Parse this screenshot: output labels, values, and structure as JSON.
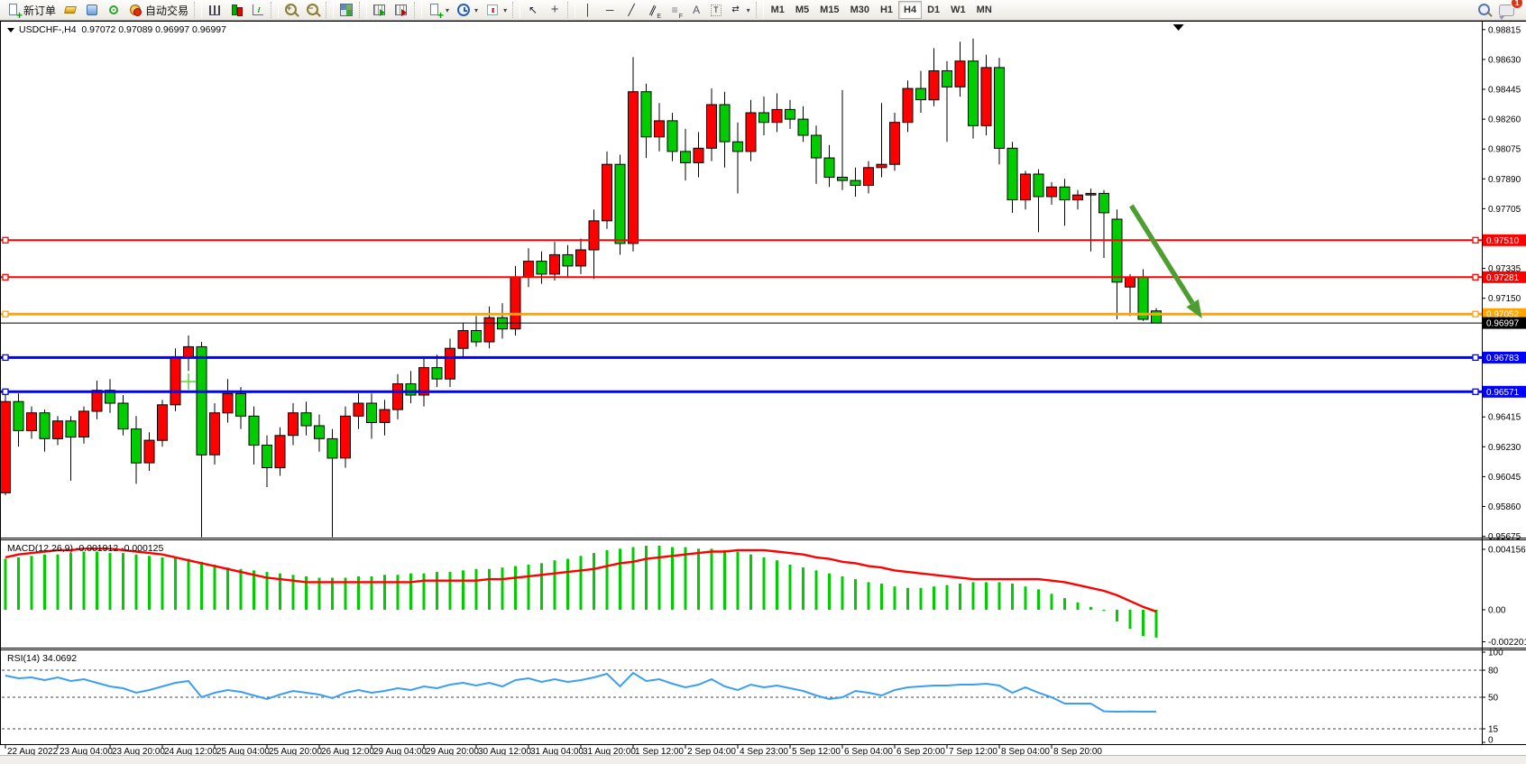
{
  "toolbar": {
    "new_order_label": "新订单",
    "auto_trading_label": "自动交易",
    "timeframes": [
      "M1",
      "M5",
      "M15",
      "M30",
      "H1",
      "H4",
      "D1",
      "W1",
      "MN"
    ],
    "active_timeframe": "H4",
    "notification_count": "1"
  },
  "icons": {
    "caret": "▾",
    "cursor": "↖",
    "crosshair": "+",
    "vline": "│",
    "hline": "─",
    "trendline": "╱",
    "channel": "∥",
    "fibo": "≡",
    "text_tool": "A",
    "label_tool": "T",
    "arrows_tool": "⇄",
    "zoom_in": "+",
    "zoom_out": "−",
    "search": "🔍"
  },
  "chart": {
    "title_text": "USDCHF-,H4  0.97072 0.97089 0.96997 0.96997",
    "macd_label": "MACD(12,26,9) -0.001912 -0.000125",
    "rsi_label": "RSI(14) 34.0692"
  },
  "chart_data": [
    {
      "type": "candlestick",
      "symbol": "USDCHF-",
      "timeframe": "H4",
      "ohlc_last": {
        "open": 0.97072,
        "high": 0.97089,
        "low": 0.96997,
        "close": 0.96997
      },
      "bull_color": "#ff0000",
      "bear_color": "#00cc00",
      "y_axis_labels": [
        0.98815,
        0.9863,
        0.98445,
        0.9826,
        0.98075,
        0.9789,
        0.97705,
        0.97335,
        0.9715,
        0.96415,
        0.9623,
        0.96045,
        0.9586,
        0.95675
      ],
      "axis_badges": [
        {
          "value": 0.9751,
          "color": "#ff0000"
        },
        {
          "value": 0.97281,
          "color": "#ff0000"
        },
        {
          "value": 0.97052,
          "color": "#ffa500"
        },
        {
          "value": 0.96997,
          "color": "#000000"
        },
        {
          "value": 0.96783,
          "color": "#0000ff"
        },
        {
          "value": 0.96571,
          "color": "#0000ff"
        }
      ],
      "level_lines": [
        {
          "price": 0.9751,
          "color": "#ff0000",
          "width": 2
        },
        {
          "price": 0.97281,
          "color": "#ff0000",
          "width": 2
        },
        {
          "price": 0.97052,
          "color": "#ffa500",
          "width": 3
        },
        {
          "price": 0.96783,
          "color": "#0000ff",
          "width": 3
        },
        {
          "price": 0.96571,
          "color": "#0000ff",
          "width": 3
        }
      ],
      "current_price_line": {
        "price": 0.96997,
        "color": "#000000"
      },
      "time_labels": [
        "22 Aug 2022",
        "23 Aug 04:00",
        "23 Aug 20:00",
        "24 Aug 12:00",
        "25 Aug 04:00",
        "25 Aug 20:00",
        "26 Aug 12:00",
        "29 Aug 04:00",
        "29 Aug 20:00",
        "30 Aug 12:00",
        "31 Aug 04:00",
        "31 Aug 20:00",
        "1 Sep 12:00",
        "2 Sep 04:00",
        "4 Sep 23:00",
        "5 Sep 12:00",
        "6 Sep 04:00",
        "6 Sep 20:00",
        "7 Sep 12:00",
        "8 Sep 04:00",
        "8 Sep 20:00"
      ],
      "bars_per_label": 4,
      "ohlc": [
        [
          0.95945,
          0.9656,
          0.9593,
          0.9651
        ],
        [
          0.9651,
          0.9656,
          0.9623,
          0.9633
        ],
        [
          0.9633,
          0.9648,
          0.9628,
          0.9644
        ],
        [
          0.9644,
          0.9646,
          0.962,
          0.9628
        ],
        [
          0.9628,
          0.9642,
          0.9624,
          0.9639
        ],
        [
          0.9639,
          0.9642,
          0.9602,
          0.9629
        ],
        [
          0.9629,
          0.9648,
          0.9625,
          0.9645
        ],
        [
          0.9645,
          0.9664,
          0.964,
          0.9658
        ],
        [
          0.9658,
          0.9665,
          0.9644,
          0.965
        ],
        [
          0.965,
          0.9655,
          0.963,
          0.9634
        ],
        [
          0.9634,
          0.9642,
          0.96,
          0.9613
        ],
        [
          0.9613,
          0.9632,
          0.9608,
          0.9627
        ],
        [
          0.9627,
          0.9652,
          0.9623,
          0.9649
        ],
        [
          0.9649,
          0.9684,
          0.9645,
          0.9678
        ],
        [
          0.9678,
          0.9692,
          0.967,
          0.9685
        ],
        [
          0.9685,
          0.9688,
          0.9567,
          0.9618
        ],
        [
          0.9618,
          0.965,
          0.9612,
          0.9644
        ],
        [
          0.9644,
          0.9665,
          0.9638,
          0.9656
        ],
        [
          0.9656,
          0.966,
          0.9634,
          0.9642
        ],
        [
          0.9642,
          0.9648,
          0.9612,
          0.9624
        ],
        [
          0.9624,
          0.963,
          0.9598,
          0.961
        ],
        [
          0.961,
          0.9635,
          0.9605,
          0.963
        ],
        [
          0.963,
          0.965,
          0.9624,
          0.9644
        ],
        [
          0.9644,
          0.9651,
          0.963,
          0.9636
        ],
        [
          0.9636,
          0.9643,
          0.962,
          0.9628
        ],
        [
          0.9628,
          0.9634,
          0.9567,
          0.9616
        ],
        [
          0.9616,
          0.9648,
          0.961,
          0.9642
        ],
        [
          0.9642,
          0.9656,
          0.9634,
          0.965
        ],
        [
          0.965,
          0.9656,
          0.9628,
          0.9638
        ],
        [
          0.9638,
          0.9652,
          0.963,
          0.9646
        ],
        [
          0.9646,
          0.9668,
          0.964,
          0.9662
        ],
        [
          0.9662,
          0.967,
          0.965,
          0.9655
        ],
        [
          0.9655,
          0.9678,
          0.9648,
          0.9672
        ],
        [
          0.9672,
          0.968,
          0.966,
          0.9665
        ],
        [
          0.9665,
          0.969,
          0.966,
          0.9684
        ],
        [
          0.9684,
          0.97,
          0.9678,
          0.9695
        ],
        [
          0.9695,
          0.9704,
          0.9685,
          0.9688
        ],
        [
          0.9688,
          0.971,
          0.9684,
          0.9703
        ],
        [
          0.9703,
          0.9712,
          0.969,
          0.9696
        ],
        [
          0.9696,
          0.9735,
          0.9692,
          0.9728
        ],
        [
          0.9728,
          0.9746,
          0.9722,
          0.9738
        ],
        [
          0.9738,
          0.9744,
          0.9724,
          0.973
        ],
        [
          0.973,
          0.975,
          0.9726,
          0.9742
        ],
        [
          0.9742,
          0.9748,
          0.9728,
          0.9735
        ],
        [
          0.9735,
          0.9752,
          0.973,
          0.9745
        ],
        [
          0.9745,
          0.977,
          0.9727,
          0.9763
        ],
        [
          0.9763,
          0.9806,
          0.9758,
          0.9798
        ],
        [
          0.9798,
          0.9804,
          0.9742,
          0.9749
        ],
        [
          0.9749,
          0.98645,
          0.9744,
          0.9843
        ],
        [
          0.9843,
          0.9848,
          0.9802,
          0.9815
        ],
        [
          0.9815,
          0.9836,
          0.9806,
          0.9825
        ],
        [
          0.9825,
          0.983,
          0.98,
          0.9806
        ],
        [
          0.9806,
          0.982,
          0.9788,
          0.9799
        ],
        [
          0.9799,
          0.9818,
          0.979,
          0.9808
        ],
        [
          0.9808,
          0.9845,
          0.98,
          0.9835
        ],
        [
          0.9835,
          0.9843,
          0.9796,
          0.9812
        ],
        [
          0.9812,
          0.9824,
          0.978,
          0.9806
        ],
        [
          0.9806,
          0.9838,
          0.98,
          0.983
        ],
        [
          0.983,
          0.984,
          0.9816,
          0.9824
        ],
        [
          0.9824,
          0.9842,
          0.9818,
          0.9832
        ],
        [
          0.9832,
          0.9838,
          0.982,
          0.9826
        ],
        [
          0.9826,
          0.9834,
          0.9812,
          0.9816
        ],
        [
          0.9816,
          0.9822,
          0.9786,
          0.9802
        ],
        [
          0.9802,
          0.981,
          0.9784,
          0.979
        ],
        [
          0.979,
          0.9844,
          0.9782,
          0.9788
        ],
        [
          0.9788,
          0.9796,
          0.9778,
          0.9785
        ],
        [
          0.9785,
          0.98,
          0.978,
          0.9796
        ],
        [
          0.9796,
          0.9836,
          0.979,
          0.9798
        ],
        [
          0.9798,
          0.983,
          0.9794,
          0.9824
        ],
        [
          0.9824,
          0.985,
          0.9818,
          0.9845
        ],
        [
          0.9845,
          0.9856,
          0.983,
          0.9838
        ],
        [
          0.9838,
          0.987,
          0.9834,
          0.9856
        ],
        [
          0.9856,
          0.9862,
          0.9812,
          0.9846
        ],
        [
          0.9846,
          0.9874,
          0.984,
          0.9862
        ],
        [
          0.9862,
          0.9876,
          0.9814,
          0.9822
        ],
        [
          0.9822,
          0.9866,
          0.9816,
          0.9858
        ],
        [
          0.9858,
          0.9864,
          0.9798,
          0.9808
        ],
        [
          0.9808,
          0.9812,
          0.9768,
          0.9776
        ],
        [
          0.9776,
          0.9794,
          0.977,
          0.9792
        ],
        [
          0.9792,
          0.9795,
          0.9756,
          0.9778
        ],
        [
          0.9778,
          0.9787,
          0.9773,
          0.9784
        ],
        [
          0.9784,
          0.9789,
          0.976,
          0.9776
        ],
        [
          0.9776,
          0.9782,
          0.977,
          0.9779
        ],
        [
          0.9779,
          0.9783,
          0.9744,
          0.978
        ],
        [
          0.978,
          0.9782,
          0.974,
          0.9768
        ],
        [
          0.9764,
          0.977,
          0.9702,
          0.9725
        ],
        [
          0.9722,
          0.973,
          0.9704,
          0.9728
        ],
        [
          0.9728,
          0.9733,
          0.9701,
          0.9702
        ],
        [
          0.97072,
          0.97089,
          0.96997,
          0.96997
        ]
      ],
      "annotations": {
        "down_arrow": {
          "bar1": 86.1,
          "price1": 0.97724,
          "bar2": 91.5,
          "price2": 0.97025,
          "color": "#4b9e2f"
        },
        "plus_marker": {
          "bar": 14,
          "price": 0.96634,
          "color": "#63d643"
        },
        "shift_marker_bar": 89.7
      }
    },
    {
      "type": "bar",
      "name": "MACD",
      "params": "12,26,9",
      "value": -0.001912,
      "signal_value": -0.000125,
      "hist_color": "#00cc00",
      "signal_color": "#ff0000",
      "y_axis_labels": [
        "0.004156",
        "0.00",
        "-0.002201"
      ],
      "y_axis_values": [
        0.004156,
        0,
        -0.002201
      ],
      "histogram": [
        0.0035,
        0.0036,
        0.0037,
        0.0038,
        0.0038,
        0.0039,
        0.004,
        0.004,
        0.0039,
        0.0039,
        0.0038,
        0.0037,
        0.0036,
        0.0036,
        0.0035,
        0.0033,
        0.0031,
        0.0029,
        0.0028,
        0.0027,
        0.0026,
        0.0025,
        0.0024,
        0.0023,
        0.0022,
        0.0022,
        0.0022,
        0.0023,
        0.0023,
        0.0024,
        0.0024,
        0.0025,
        0.0025,
        0.0026,
        0.0026,
        0.0027,
        0.0028,
        0.0028,
        0.0029,
        0.003,
        0.0031,
        0.0032,
        0.0034,
        0.0035,
        0.0037,
        0.0039,
        0.0041,
        0.0042,
        0.0043,
        0.0044,
        0.0044,
        0.0043,
        0.0043,
        0.0042,
        0.0042,
        0.0041,
        0.004,
        0.0038,
        0.0036,
        0.0034,
        0.0031,
        0.0029,
        0.0027,
        0.0025,
        0.0023,
        0.0021,
        0.0019,
        0.0018,
        0.0016,
        0.0015,
        0.0015,
        0.0016,
        0.0017,
        0.0018,
        0.0019,
        0.0019,
        0.0019,
        0.0018,
        0.0016,
        0.0014,
        0.0011,
        0.0008,
        0.0005,
        0.0002,
        0.0,
        -0.0008,
        -0.0013,
        -0.0018,
        -0.001912
      ],
      "signal": [
        0.0036,
        0.0038,
        0.0039,
        0.004,
        0.0041,
        0.0041,
        0.0042,
        0.0042,
        0.0042,
        0.0041,
        0.004,
        0.0039,
        0.0038,
        0.0036,
        0.0034,
        0.0032,
        0.003,
        0.0028,
        0.0026,
        0.0024,
        0.0022,
        0.0021,
        0.002,
        0.0019,
        0.0019,
        0.0019,
        0.0019,
        0.0019,
        0.0019,
        0.0019,
        0.0019,
        0.0019,
        0.002,
        0.002,
        0.002,
        0.002,
        0.002,
        0.0021,
        0.0021,
        0.0022,
        0.0023,
        0.0024,
        0.0025,
        0.0026,
        0.0027,
        0.0028,
        0.003,
        0.0032,
        0.0033,
        0.0035,
        0.0036,
        0.0037,
        0.0038,
        0.0039,
        0.004,
        0.004,
        0.0041,
        0.0041,
        0.0041,
        0.004,
        0.0039,
        0.0038,
        0.0036,
        0.0035,
        0.0033,
        0.0032,
        0.003,
        0.0029,
        0.0027,
        0.0026,
        0.0025,
        0.0024,
        0.0023,
        0.0022,
        0.0021,
        0.0021,
        0.0021,
        0.0021,
        0.0021,
        0.0021,
        0.002,
        0.0019,
        0.0017,
        0.0015,
        0.0013,
        0.001,
        0.0006,
        0.0002,
        -0.000125
      ]
    },
    {
      "type": "line",
      "name": "RSI",
      "params": "14",
      "value": 34.0692,
      "line_color": "#3b9ef3",
      "levels": [
        80,
        50,
        15
      ],
      "y_axis_labels": [
        100,
        80,
        50,
        15,
        0
      ],
      "values": [
        74,
        71,
        72,
        69,
        72,
        68,
        70,
        66,
        62,
        60,
        55,
        58,
        62,
        66,
        68,
        50,
        55,
        58,
        56,
        52,
        48,
        53,
        57,
        55,
        53,
        49,
        55,
        58,
        55,
        57,
        60,
        58,
        62,
        60,
        64,
        66,
        63,
        66,
        62,
        69,
        71,
        67,
        70,
        67,
        69,
        72,
        76,
        62,
        77,
        68,
        70,
        65,
        61,
        64,
        70,
        62,
        58,
        64,
        61,
        63,
        60,
        57,
        52,
        48,
        50,
        57,
        55,
        52,
        58,
        61,
        62,
        63,
        63,
        64,
        64,
        65,
        63,
        55,
        61,
        55,
        50,
        43,
        43,
        43,
        34.4,
        34,
        34.2,
        34,
        34.07
      ]
    }
  ]
}
